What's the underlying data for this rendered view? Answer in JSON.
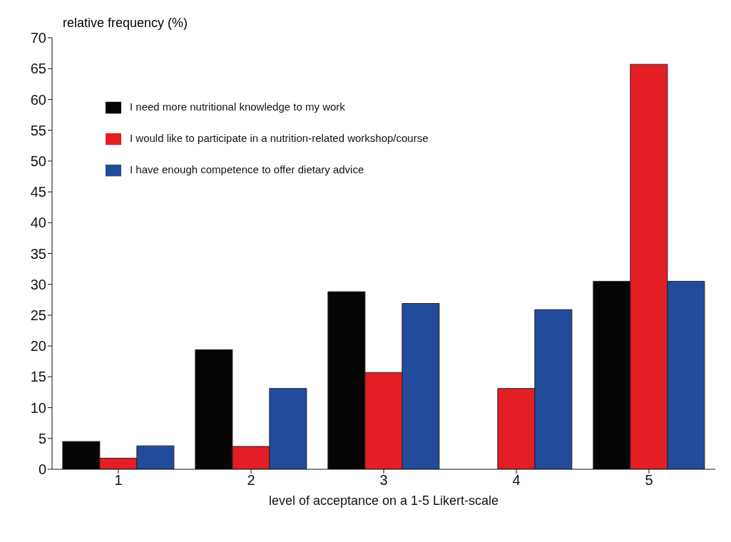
{
  "chart_data": {
    "type": "bar",
    "ylabel": "relative frequency (%)",
    "xlabel": "level of acceptance on a 1-5 Likert-scale",
    "categories": [
      "1",
      "2",
      "3",
      "4",
      "5"
    ],
    "series": [
      {
        "name": "I need more nutritional knowledge to my work",
        "color": "#050505",
        "values": [
          4.5,
          19.4,
          28.8,
          0,
          30.5
        ]
      },
      {
        "name": "I would like to participate in a nutrition-related workshop/course",
        "color": "#e31e24",
        "values": [
          1.8,
          3.7,
          15.7,
          13.1,
          65.7
        ]
      },
      {
        "name": "I have enough competence to offer dietary advice",
        "color": "#224b9c",
        "values": [
          3.8,
          13.1,
          26.9,
          25.9,
          30.5
        ]
      }
    ],
    "ylim": [
      0,
      70
    ],
    "yticks": [
      0,
      5,
      10,
      15,
      20,
      25,
      30,
      35,
      40,
      45,
      50,
      55,
      60,
      65,
      70
    ],
    "grid": false,
    "legend": "top left"
  }
}
